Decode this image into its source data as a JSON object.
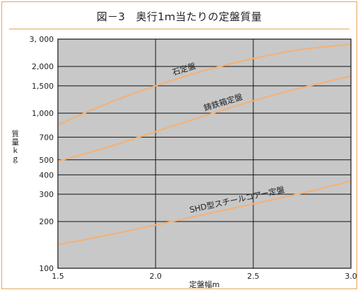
{
  "chart_data": {
    "type": "line",
    "title": "図－3　奥行1ｍ当たりの定盤質量",
    "xlabel": "定盤幅m",
    "ylabel": "質量ｋｇ",
    "y_scale": "log",
    "xlim": [
      1.5,
      3.0
    ],
    "ylim": [
      100,
      3000
    ],
    "x_ticks": [
      1.5,
      2.0,
      2.5,
      3.0
    ],
    "x_tick_labels": [
      "1.5",
      "2.0",
      "2.5",
      "3.0"
    ],
    "y_ticks": [
      100,
      200,
      300,
      400,
      500,
      700,
      1000,
      1500,
      2000,
      3000
    ],
    "y_tick_labels": [
      "100",
      "200",
      "300",
      "400",
      "500",
      "700",
      "1,000",
      "1,500",
      "2,000",
      "3, 000"
    ],
    "grid": true,
    "series": [
      {
        "name": "石定盤",
        "x": [
          1.5,
          1.75,
          2.0,
          2.25,
          2.5,
          2.75,
          3.0
        ],
        "values": [
          840,
          1150,
          1500,
          1880,
          2250,
          2580,
          2770
        ]
      },
      {
        "name": "鋳鉄箱定盤",
        "x": [
          1.5,
          1.75,
          2.0,
          2.25,
          2.5,
          2.75,
          3.0
        ],
        "values": [
          490,
          600,
          760,
          960,
          1200,
          1460,
          1730
        ]
      },
      {
        "name": "SHD型スチールコアー定盤",
        "x": [
          1.5,
          1.75,
          2.0,
          2.25,
          2.5,
          2.75,
          3.0
        ],
        "values": [
          142,
          163,
          190,
          222,
          260,
          305,
          365
        ]
      }
    ]
  },
  "colors": {
    "frame": "#e8a25a",
    "plot_bg": "#c8c8c8",
    "grid": "#111111",
    "curve": "#f2b27a"
  }
}
